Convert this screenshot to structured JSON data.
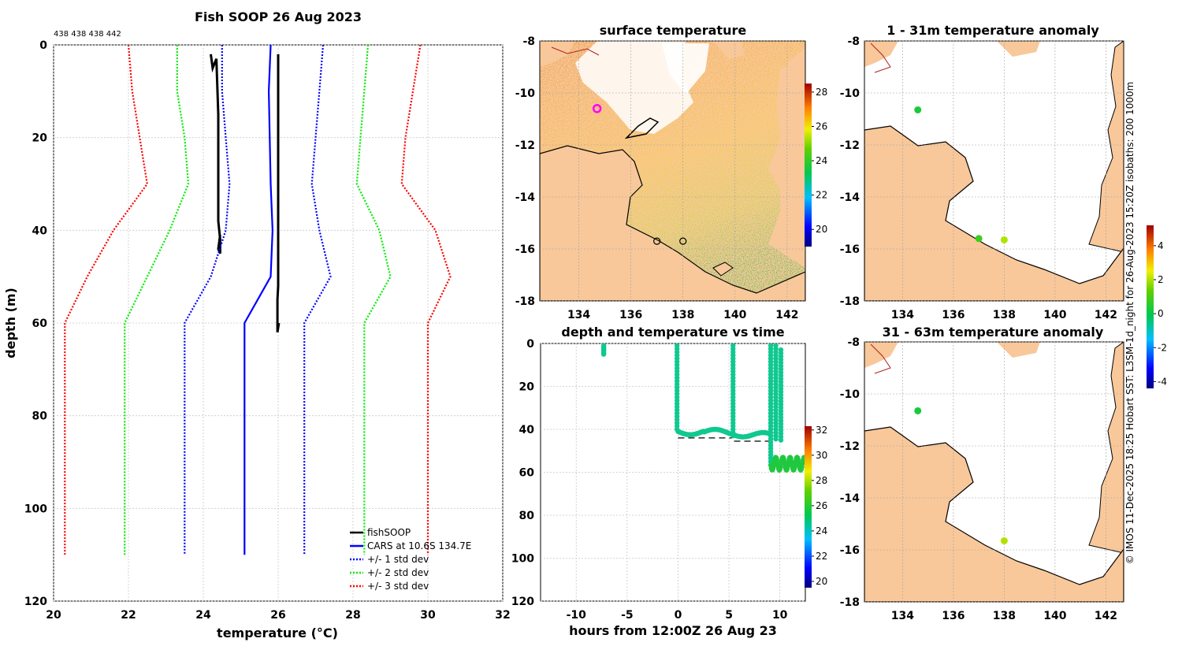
{
  "chart_data": [
    {
      "type": "line",
      "title": "Fish SOOP 26 Aug 2023",
      "subtitle": "438 438 438 442",
      "xlabel": "temperature (°C)",
      "ylabel": "depth (m)",
      "xlim": [
        20,
        32
      ],
      "ylim": [
        0,
        120
      ],
      "y_inverted": true,
      "xticks": [
        "20",
        "22",
        "24",
        "26",
        "28",
        "30",
        "32"
      ],
      "yticks": [
        "0",
        "20",
        "40",
        "60",
        "80",
        "100",
        "120"
      ],
      "legend_position": "bottom-right",
      "series": [
        {
          "name": "fishSOOP",
          "color": "#000000",
          "style": "solid",
          "points": [
            [
              24.2,
              2
            ],
            [
              24.25,
              5
            ],
            [
              24.35,
              3
            ],
            [
              24.4,
              15
            ],
            [
              24.4,
              30
            ],
            [
              24.4,
              38
            ],
            [
              24.45,
              42
            ],
            [
              24.45,
              45
            ],
            [
              24.4,
              44
            ],
            [
              24.45,
              41
            ]
          ],
          "points2": [
            [
              26.0,
              2
            ],
            [
              26.0,
              20
            ],
            [
              26.0,
              35
            ],
            [
              26.0,
              52
            ],
            [
              25.98,
              55
            ],
            [
              25.98,
              62
            ],
            [
              26.02,
              60
            ]
          ]
        },
        {
          "name": "CARS at 10.6S 134.7E",
          "color": "#0000ff",
          "style": "solid",
          "points": [
            [
              25.8,
              0
            ],
            [
              25.75,
              10
            ],
            [
              25.8,
              30
            ],
            [
              25.85,
              40
            ],
            [
              25.8,
              50
            ],
            [
              25.1,
              60
            ],
            [
              25.1,
              110
            ]
          ]
        },
        {
          "name": "+/- 1 std dev",
          "color": "#0000ff",
          "style": "dotted",
          "lower": [
            [
              24.5,
              0
            ],
            [
              24.5,
              10
            ],
            [
              24.6,
              20
            ],
            [
              24.7,
              30
            ],
            [
              24.6,
              40
            ],
            [
              24.2,
              50
            ],
            [
              23.5,
              60
            ],
            [
              23.5,
              110
            ]
          ],
          "upper": [
            [
              27.2,
              0
            ],
            [
              27.1,
              10
            ],
            [
              27.0,
              20
            ],
            [
              26.9,
              30
            ],
            [
              27.1,
              40
            ],
            [
              27.4,
              50
            ],
            [
              26.7,
              60
            ],
            [
              26.7,
              110
            ]
          ]
        },
        {
          "name": "+/- 2 std dev",
          "color": "#00ee00",
          "style": "dotted",
          "lower": [
            [
              23.3,
              0
            ],
            [
              23.3,
              10
            ],
            [
              23.5,
              20
            ],
            [
              23.6,
              30
            ],
            [
              23.1,
              40
            ],
            [
              22.5,
              50
            ],
            [
              21.9,
              60
            ],
            [
              21.9,
              110
            ]
          ],
          "upper": [
            [
              28.4,
              0
            ],
            [
              28.3,
              10
            ],
            [
              28.2,
              20
            ],
            [
              28.1,
              30
            ],
            [
              28.7,
              40
            ],
            [
              29.0,
              50
            ],
            [
              28.3,
              60
            ],
            [
              28.3,
              110
            ]
          ]
        },
        {
          "name": "+/- 3 std dev",
          "color": "#ff0000",
          "style": "dotted",
          "lower": [
            [
              22.0,
              0
            ],
            [
              22.1,
              10
            ],
            [
              22.3,
              20
            ],
            [
              22.5,
              30
            ],
            [
              21.6,
              40
            ],
            [
              20.9,
              50
            ],
            [
              20.3,
              60
            ],
            [
              20.3,
              110
            ]
          ],
          "upper": [
            [
              29.8,
              0
            ],
            [
              29.6,
              10
            ],
            [
              29.4,
              20
            ],
            [
              29.3,
              30
            ],
            [
              30.2,
              40
            ],
            [
              30.6,
              50
            ],
            [
              30.0,
              60
            ],
            [
              30.0,
              110
            ]
          ]
        }
      ]
    },
    {
      "type": "heatmap",
      "title": "surface temperature",
      "xlim": [
        132.5,
        142.7
      ],
      "ylim": [
        -18,
        -8
      ],
      "xticks": [
        "134",
        "136",
        "138",
        "140",
        "142"
      ],
      "yticks": [
        "-8",
        "-10",
        "-12",
        "-14",
        "-16",
        "-18"
      ],
      "colorbar_range": [
        19,
        28.5
      ],
      "colorbar_ticks": [
        "28",
        "26",
        "24",
        "22",
        "20"
      ],
      "markers": [
        {
          "lon": 134.7,
          "lat": -10.6,
          "color": "#ff00ff",
          "shape": "circle"
        },
        {
          "lon": 137.0,
          "lat": -15.7,
          "color": "#000000",
          "shape": "open-circle"
        },
        {
          "lon": 138.0,
          "lat": -15.7,
          "color": "#000000",
          "shape": "open-circle"
        }
      ]
    },
    {
      "type": "scatter",
      "title": "1 - 31m temperature anomaly",
      "xlim": [
        132.5,
        142.7
      ],
      "ylim": [
        -18,
        -8
      ],
      "xticks": [
        "134",
        "136",
        "138",
        "140",
        "142"
      ],
      "yticks": [
        "-8",
        "-10",
        "-12",
        "-14",
        "-16",
        "-18"
      ],
      "points": [
        {
          "lon": 134.6,
          "lat": -10.65,
          "anomaly": 0.3
        },
        {
          "lon": 137.0,
          "lat": -15.6,
          "anomaly": 0.8
        },
        {
          "lon": 138.0,
          "lat": -15.65,
          "anomaly": 2.0
        }
      ]
    },
    {
      "type": "scatter",
      "title": "depth and temperature vs time",
      "xlabel": "hours from 12:00Z 26 Aug 23",
      "xlim": [
        -13.5,
        12.5
      ],
      "ylim": [
        0,
        120
      ],
      "y_inverted": true,
      "xticks": [
        "-10",
        "-5",
        "0",
        "5",
        "10"
      ],
      "yticks": [
        "0",
        "20",
        "40",
        "60",
        "80",
        "100",
        "120"
      ],
      "colorbar_range": [
        19.5,
        32.3
      ],
      "colorbar_ticks": [
        "32",
        "30",
        "28",
        "26",
        "24",
        "22",
        "20"
      ],
      "seafloor_segments": [
        {
          "x": [
            0,
            5.3
          ],
          "depth": 44
        },
        {
          "x": [
            5.5,
            9
          ],
          "depth": 45.5
        },
        {
          "x": [
            9,
            10.2
          ],
          "depth": 57
        }
      ]
    },
    {
      "type": "scatter",
      "title": "31 - 63m temperature anomaly",
      "xlim": [
        132.5,
        142.7
      ],
      "ylim": [
        -18,
        -8
      ],
      "xticks": [
        "134",
        "136",
        "138",
        "140",
        "142"
      ],
      "yticks": [
        "-8",
        "-10",
        "-12",
        "-14",
        "-16",
        "-18"
      ],
      "points": [
        {
          "lon": 134.6,
          "lat": -10.65,
          "anomaly": 0.3
        },
        {
          "lon": 138.0,
          "lat": -15.65,
          "anomaly": 2.0
        }
      ],
      "colorbar_range": [
        -4.4,
        5.2
      ],
      "colorbar_ticks": [
        "4",
        "2",
        "0",
        "-2",
        "-4"
      ]
    }
  ],
  "side_note": "© IMOS 11-Dec-2025 18:25 Hobart SST: L3SM-1d_night for 26-Aug-2023 15:20Z isobaths: 200  1000m"
}
